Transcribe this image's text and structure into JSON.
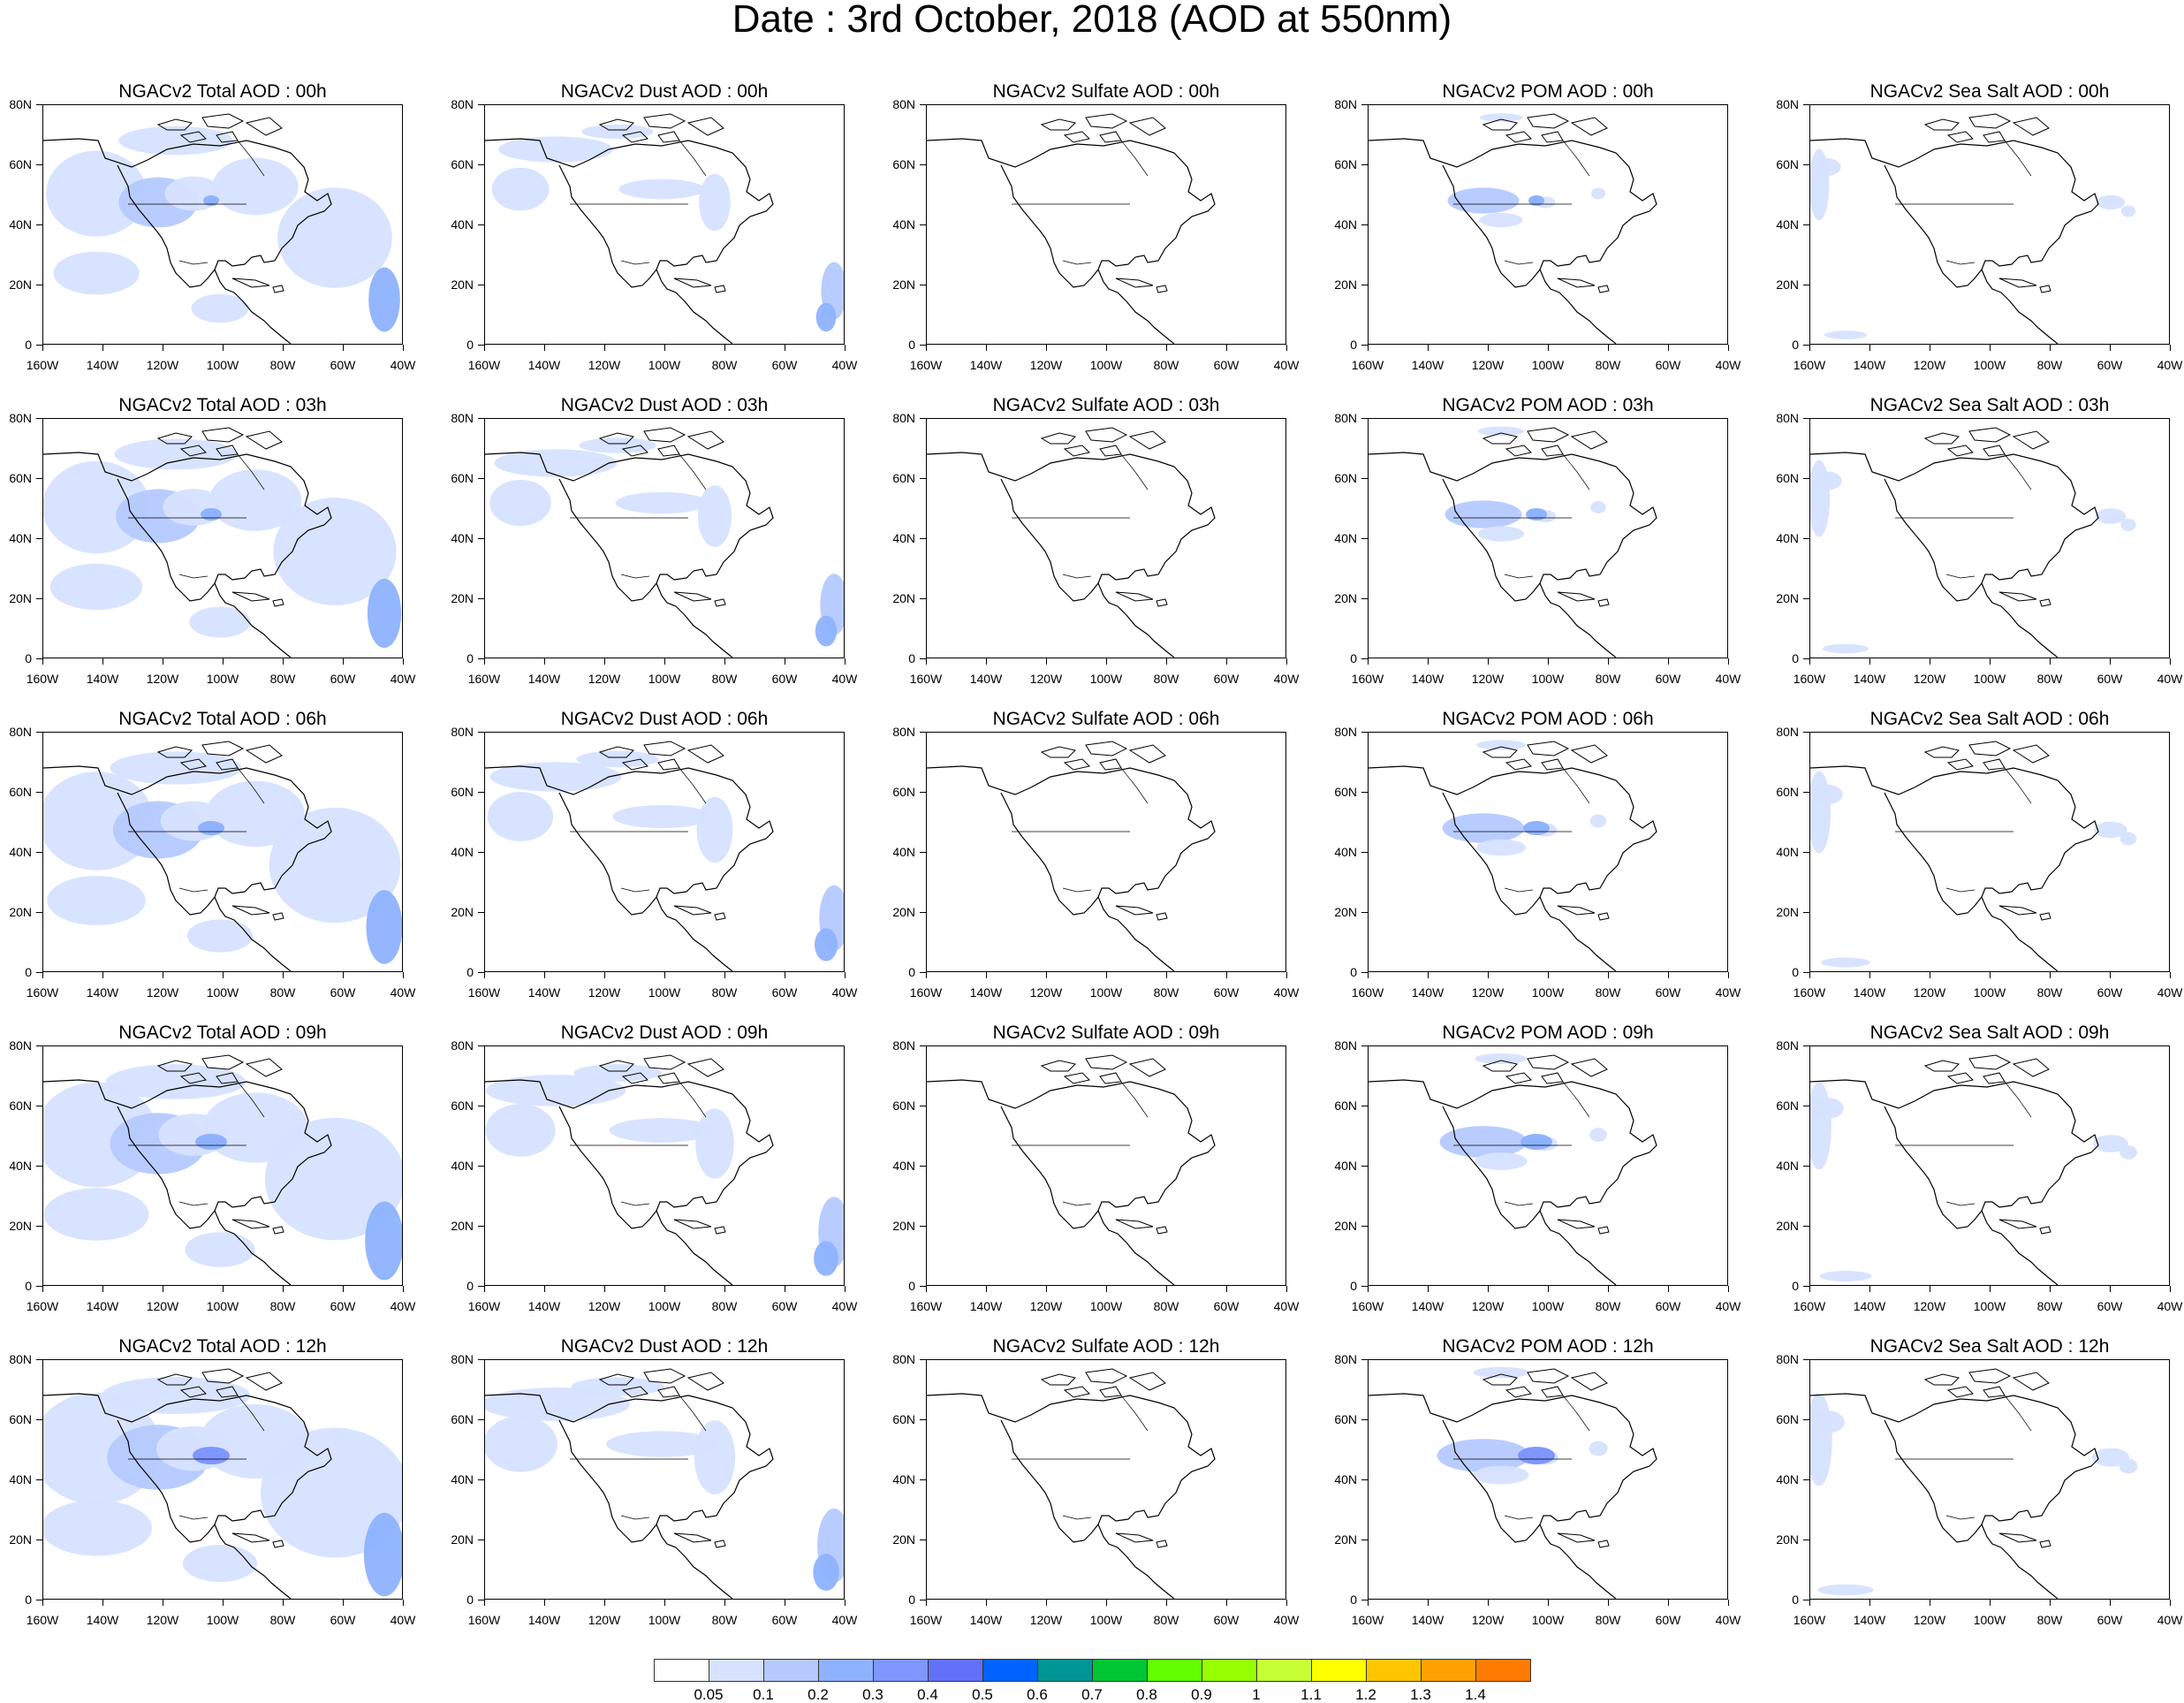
{
  "title": "Date : 3rd October, 2018 (AOD at 550nm)",
  "axes": {
    "y_labels": [
      "80N",
      "60N",
      "40N",
      "20N",
      "0"
    ],
    "x_labels": [
      "160W",
      "140W",
      "120W",
      "100W",
      "80W",
      "60W",
      "40W"
    ]
  },
  "panels": [
    [
      {
        "title": "NGACv2 Total AOD : 00h",
        "kind": "total",
        "level": 1
      },
      {
        "title": "NGACv2 Dust AOD : 00h",
        "kind": "dust",
        "level": 1
      },
      {
        "title": "NGACv2 Sulfate AOD : 00h",
        "kind": "sulfate",
        "level": 1
      },
      {
        "title": "NGACv2 POM AOD : 00h",
        "kind": "pom",
        "level": 1
      },
      {
        "title": "NGACv2 Sea Salt AOD : 00h",
        "kind": "seasalt",
        "level": 1
      }
    ],
    [
      {
        "title": "NGACv2 Total AOD : 03h",
        "kind": "total",
        "level": 2
      },
      {
        "title": "NGACv2 Dust AOD : 03h",
        "kind": "dust",
        "level": 2
      },
      {
        "title": "NGACv2 Sulfate AOD : 03h",
        "kind": "sulfate",
        "level": 2
      },
      {
        "title": "NGACv2 POM AOD : 03h",
        "kind": "pom",
        "level": 2
      },
      {
        "title": "NGACv2 Sea Salt AOD : 03h",
        "kind": "seasalt",
        "level": 2
      }
    ],
    [
      {
        "title": "NGACv2 Total AOD : 06h",
        "kind": "total",
        "level": 3
      },
      {
        "title": "NGACv2 Dust AOD : 06h",
        "kind": "dust",
        "level": 3
      },
      {
        "title": "NGACv2 Sulfate AOD : 06h",
        "kind": "sulfate",
        "level": 3
      },
      {
        "title": "NGACv2 POM AOD : 06h",
        "kind": "pom",
        "level": 3
      },
      {
        "title": "NGACv2 Sea Salt AOD : 06h",
        "kind": "seasalt",
        "level": 3
      }
    ],
    [
      {
        "title": "NGACv2 Total AOD : 09h",
        "kind": "total",
        "level": 4
      },
      {
        "title": "NGACv2 Dust AOD : 09h",
        "kind": "dust",
        "level": 4
      },
      {
        "title": "NGACv2 Sulfate AOD : 09h",
        "kind": "sulfate",
        "level": 4
      },
      {
        "title": "NGACv2 POM AOD : 09h",
        "kind": "pom",
        "level": 4
      },
      {
        "title": "NGACv2 Sea Salt  AOD : 09h",
        "kind": "seasalt",
        "level": 4
      }
    ],
    [
      {
        "title": "NGACv2 Total AOD  : 12h",
        "kind": "total",
        "level": 5
      },
      {
        "title": "NGACv2 Dust AOD : 12h",
        "kind": "dust",
        "level": 5
      },
      {
        "title": "NGACv2 Sulfate AOD : 12h",
        "kind": "sulfate",
        "level": 5
      },
      {
        "title": "NGACv2 POM  AOD : 12h",
        "kind": "pom",
        "level": 5
      },
      {
        "title": "NGACv2 Sea Salt  AOD : 12h",
        "kind": "seasalt",
        "level": 5
      }
    ]
  ],
  "colorbar": {
    "colors": [
      "#ffffff",
      "#d6e2ff",
      "#b5c9ff",
      "#8eb2ff",
      "#7f96ff",
      "#6370f8",
      "#0063ff",
      "#009696",
      "#00c633",
      "#63ff00",
      "#96ff00",
      "#c6ff33",
      "#ffff00",
      "#ffc600",
      "#ffa000",
      "#ff7c00",
      "#ff1900"
    ],
    "labels": [
      "0.05",
      "0.1",
      "0.2",
      "0.3",
      "0.4",
      "0.5",
      "0.6",
      "0.7",
      "0.8",
      "0.9",
      "1",
      "1.1",
      "1.2",
      "1.3",
      "1.4"
    ]
  }
}
